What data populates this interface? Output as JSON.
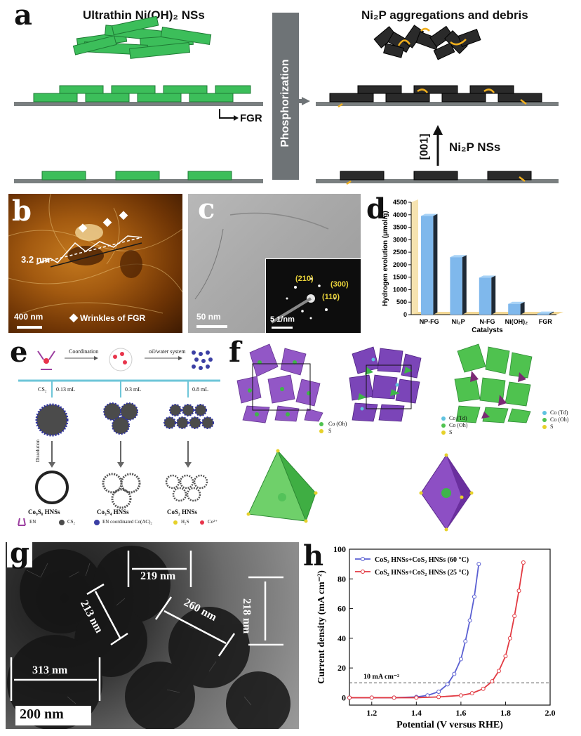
{
  "panel_labels": {
    "a": "a",
    "b": "b",
    "c": "c",
    "d": "d",
    "e": "e",
    "f": "f",
    "g": "g",
    "h": "h"
  },
  "a": {
    "left_title": "Ultrathin Ni(OH)₂ NSs",
    "right_title": "Ni₂P aggregations and debris",
    "middle": "Phosphorization",
    "fgr": "FGR",
    "direction": "[001]",
    "ni2p_nss": "Ni₂P NSs",
    "colors": {
      "green": "#3cbe5a",
      "dark": "#2a2a2a",
      "arrow": "#f1b01e",
      "gray": "#7a7f80"
    }
  },
  "b": {
    "thickness": "3.2 nm",
    "scale": "400 nm",
    "wrinkle": "Wrinkles of FGR"
  },
  "c": {
    "scale": "50 nm",
    "inset_scale": "5 1/nm",
    "spots": [
      "(210)",
      "(300)",
      "(110)"
    ]
  },
  "chart_data": [
    {
      "type": "bar",
      "panel": "d",
      "categories": [
        "NP-FG",
        "Ni₂P",
        "N-FG",
        "Ni(OH)₂",
        "FGR"
      ],
      "values": [
        3950,
        2300,
        1480,
        430,
        40
      ],
      "xlabel": "Catalysts",
      "ylabel": "Hydrogen evolution (µmol/g)",
      "yticks": [
        0,
        500,
        1000,
        1500,
        2000,
        2500,
        3000,
        3500,
        4000,
        4500
      ],
      "ylim": [
        0,
        4500
      ],
      "bar_color": "#7fb8ec"
    },
    {
      "type": "line",
      "panel": "h",
      "xlabel": "Potential (V versus RHE)",
      "ylabel": "Current density (mA cm⁻²)",
      "xlim": [
        1.1,
        2.0
      ],
      "ylim": [
        -5,
        100
      ],
      "xticks": [
        1.2,
        1.4,
        1.6,
        1.8,
        2.0
      ],
      "yticks": [
        0,
        20,
        40,
        60,
        80,
        100
      ],
      "reference": {
        "y": 10,
        "label": "10 mA cm⁻²"
      },
      "series": [
        {
          "name": "CoS₂ HNSs+CoS₂ HNSs (60 °C)",
          "color": "#5a5fd2",
          "x": [
            1.1,
            1.2,
            1.3,
            1.4,
            1.45,
            1.5,
            1.54,
            1.57,
            1.6,
            1.62,
            1.64,
            1.66,
            1.68
          ],
          "y": [
            0,
            0,
            0,
            0.5,
            1.5,
            4,
            9,
            16,
            26,
            38,
            52,
            68,
            90
          ]
        },
        {
          "name": "CoS₂ HNSs+CoS₂ HNSs (25 °C)",
          "color": "#e23a42",
          "x": [
            1.1,
            1.2,
            1.3,
            1.4,
            1.5,
            1.6,
            1.65,
            1.7,
            1.74,
            1.77,
            1.8,
            1.82,
            1.84,
            1.86,
            1.88
          ],
          "y": [
            0,
            0,
            0,
            0,
            0.5,
            1.5,
            3,
            6,
            11,
            18,
            28,
            40,
            55,
            72,
            91
          ]
        }
      ]
    }
  ],
  "e": {
    "coordination": "Coordination",
    "oilwater": "oil/water system",
    "cs2_a": "CS₂",
    "v1": "0.13 mL",
    "v2": "0.3 mL",
    "v3": "0.8 mL",
    "dissolution": "Dissolution",
    "products": [
      "Co₉S₈ HNSs",
      "Co₃S₄ HNSs",
      "CoS₂ HNSs"
    ],
    "legend": [
      "EN",
      "CS₂",
      "EN coordinated Co(AC)₂",
      "H₂S",
      "Co²⁺"
    ]
  },
  "f": {
    "legend1": [
      "Co (Oh)",
      "S"
    ],
    "legend2": [
      "Co (Td)",
      "Co (Oh)",
      "S"
    ],
    "legend3": [
      "Co (Td)",
      "Co (Oh)",
      "S"
    ],
    "colors": {
      "purple": "#8d4fc4",
      "green": "#4fc24f"
    }
  },
  "g": {
    "labels": [
      "219 nm",
      "213 nm",
      "218 nm",
      "260 nm",
      "313 nm"
    ],
    "scale": "200 nm"
  }
}
